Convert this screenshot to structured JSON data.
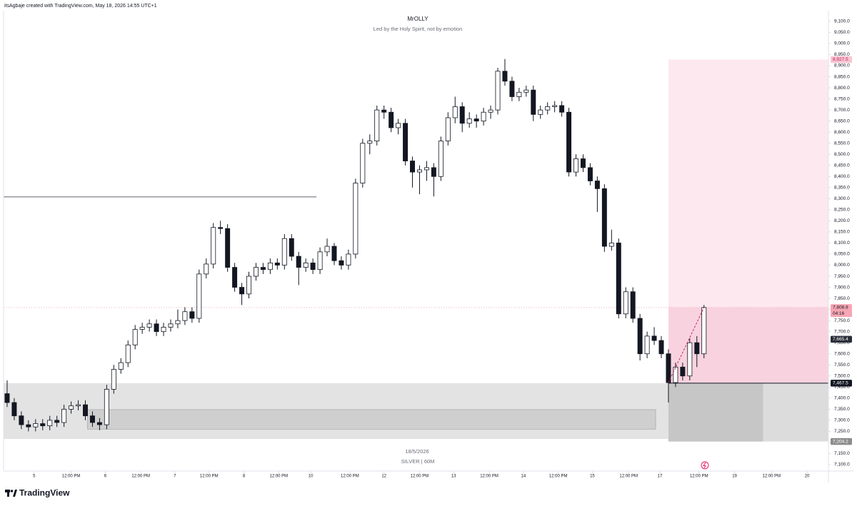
{
  "chart_data": {
    "type": "candlestick",
    "credit": "itsAgbaje created with TradingView.com, May 18, 2026 14:55 UTC+1",
    "title": "MrOLLY",
    "subtitle": "Led by the Holy Spirit, not by emotion",
    "date_label": "18/5/2026",
    "symbol": "SILVER | 60M",
    "brand": "TradingView",
    "countdown": "04:16",
    "up_color": "#ffffff",
    "down_color": "#131722",
    "xlim": [
      -0.5,
      115.5
    ],
    "ylim": [
      7071,
      9148
    ],
    "xticks": [
      {
        "value": 3.8,
        "label": "5"
      },
      {
        "value": 9.0,
        "label": "12:00 PM"
      },
      {
        "value": 13.8,
        "label": "6"
      },
      {
        "value": 18.8,
        "label": "12:00 PM"
      },
      {
        "value": 23.6,
        "label": "7"
      },
      {
        "value": 28.4,
        "label": "12:00 PM"
      },
      {
        "value": 33.3,
        "label": "8"
      },
      {
        "value": 38.2,
        "label": "12:00 PM"
      },
      {
        "value": 42.7,
        "label": "10"
      },
      {
        "value": 48.2,
        "label": "12:00 PM"
      },
      {
        "value": 53.0,
        "label": "12"
      },
      {
        "value": 58.0,
        "label": "12:00 PM"
      },
      {
        "value": 62.8,
        "label": "13"
      },
      {
        "value": 67.8,
        "label": "12:00 PM"
      },
      {
        "value": 72.6,
        "label": "14"
      },
      {
        "value": 77.5,
        "label": "12:00 PM"
      },
      {
        "value": 82.3,
        "label": "15"
      },
      {
        "value": 87.4,
        "label": "12:00 PM"
      },
      {
        "value": 91.8,
        "label": "17"
      },
      {
        "value": 97.3,
        "label": "12:00 PM"
      },
      {
        "value": 102.3,
        "label": "19"
      },
      {
        "value": 107.5,
        "label": "12:00 PM"
      },
      {
        "value": 112.5,
        "label": "20"
      }
    ],
    "yticks": [
      {
        "value": 7100,
        "label": "7,100.0"
      },
      {
        "value": 7150,
        "label": "7,150.0"
      },
      {
        "value": 7200,
        "label": "7,200.0"
      },
      {
        "value": 7250,
        "label": "7,250.0"
      },
      {
        "value": 7300,
        "label": "7,300.0"
      },
      {
        "value": 7350,
        "label": "7,350.0"
      },
      {
        "value": 7400,
        "label": "7,400.0"
      },
      {
        "value": 7450,
        "label": "7,450.0"
      },
      {
        "value": 7500,
        "label": "7,500.0"
      },
      {
        "value": 7550,
        "label": "7,550.0"
      },
      {
        "value": 7600,
        "label": "7,600.0"
      },
      {
        "value": 7650,
        "label": "7,650.0"
      },
      {
        "value": 7700,
        "label": "7,700.0"
      },
      {
        "value": 7750,
        "label": "7,750.0"
      },
      {
        "value": 7800,
        "label": "7,800.0"
      },
      {
        "value": 7850,
        "label": "7,850.0"
      },
      {
        "value": 7900,
        "label": "7,900.0"
      },
      {
        "value": 7950,
        "label": "7,950.0"
      },
      {
        "value": 8000,
        "label": "8,000.0"
      },
      {
        "value": 8050,
        "label": "8,050.0"
      },
      {
        "value": 8100,
        "label": "8,100.0"
      },
      {
        "value": 8150,
        "label": "8,150.0"
      },
      {
        "value": 8200,
        "label": "8,200.0"
      },
      {
        "value": 8250,
        "label": "8,250.0"
      },
      {
        "value": 8300,
        "label": "8,300.0"
      },
      {
        "value": 8350,
        "label": "8,350.0"
      },
      {
        "value": 8400,
        "label": "8,400.0"
      },
      {
        "value": 8450,
        "label": "8,450.0"
      },
      {
        "value": 8500,
        "label": "8,500.0"
      },
      {
        "value": 8550,
        "label": "8,550.0"
      },
      {
        "value": 8600,
        "label": "8,600.0"
      },
      {
        "value": 8650,
        "label": "8,650.0"
      },
      {
        "value": 8700,
        "label": "8,700.0"
      },
      {
        "value": 8750,
        "label": "8,750.0"
      },
      {
        "value": 8800,
        "label": "8,800.0"
      },
      {
        "value": 8850,
        "label": "8,850.0"
      },
      {
        "value": 8900,
        "label": "8,900.0"
      },
      {
        "value": 8950,
        "label": "8,950.0"
      },
      {
        "value": 9000,
        "label": "9,000.0"
      },
      {
        "value": 9050,
        "label": "9,050.0"
      },
      {
        "value": 9100,
        "label": "9,100.0"
      }
    ],
    "x": [
      0,
      1,
      2,
      3,
      4,
      5,
      6,
      7,
      8,
      9,
      10,
      11,
      12,
      13,
      14,
      15,
      16,
      17,
      18,
      19,
      20,
      21,
      22,
      23,
      24,
      25,
      26,
      27,
      28,
      29,
      30,
      31,
      32,
      33,
      34,
      35,
      36,
      37,
      38,
      39,
      40,
      41,
      42,
      43,
      44,
      45,
      46,
      47,
      48,
      49,
      50,
      51,
      52,
      53,
      54,
      55,
      56,
      57,
      58,
      59,
      60,
      61,
      62,
      63,
      64,
      65,
      66,
      67,
      68,
      69,
      70,
      71,
      72,
      73,
      74,
      75,
      76,
      77,
      78,
      79,
      80,
      81,
      82,
      83,
      84,
      85,
      86,
      87,
      88,
      89,
      90,
      91,
      92,
      93,
      94,
      95,
      96,
      97,
      98
    ],
    "ohlc": [
      [
        7420,
        7480,
        7360,
        7380
      ],
      [
        7380,
        7400,
        7300,
        7320
      ],
      [
        7320,
        7340,
        7260,
        7280
      ],
      [
        7280,
        7300,
        7250,
        7270
      ],
      [
        7270,
        7305,
        7250,
        7285
      ],
      [
        7285,
        7305,
        7255,
        7275
      ],
      [
        7275,
        7320,
        7255,
        7300
      ],
      [
        7300,
        7320,
        7270,
        7290
      ],
      [
        7290,
        7370,
        7270,
        7350
      ],
      [
        7350,
        7385,
        7330,
        7365
      ],
      [
        7365,
        7390,
        7345,
        7370
      ],
      [
        7370,
        7390,
        7300,
        7320
      ],
      [
        7320,
        7340,
        7270,
        7290
      ],
      [
        7290,
        7310,
        7255,
        7280
      ],
      [
        7280,
        7460,
        7260,
        7440
      ],
      [
        7440,
        7550,
        7420,
        7530
      ],
      [
        7530,
        7580,
        7510,
        7560
      ],
      [
        7560,
        7660,
        7540,
        7640
      ],
      [
        7640,
        7730,
        7620,
        7710
      ],
      [
        7710,
        7740,
        7690,
        7720
      ],
      [
        7720,
        7755,
        7700,
        7735
      ],
      [
        7735,
        7755,
        7680,
        7700
      ],
      [
        7700,
        7740,
        7680,
        7720
      ],
      [
        7720,
        7755,
        7700,
        7735
      ],
      [
        7735,
        7800,
        7715,
        7750
      ],
      [
        7750,
        7810,
        7730,
        7790
      ],
      [
        7790,
        7810,
        7740,
        7760
      ],
      [
        7760,
        7980,
        7740,
        7960
      ],
      [
        7960,
        8030,
        7940,
        8005
      ],
      [
        8005,
        8190,
        7985,
        8170
      ],
      [
        8170,
        8200,
        8140,
        8165
      ],
      [
        8165,
        8185,
        7970,
        7990
      ],
      [
        7990,
        8010,
        7880,
        7900
      ],
      [
        7900,
        7920,
        7820,
        7870
      ],
      [
        7870,
        7970,
        7850,
        7950
      ],
      [
        7950,
        8010,
        7930,
        7990
      ],
      [
        7990,
        8010,
        7960,
        7980
      ],
      [
        7980,
        8030,
        7960,
        8010
      ],
      [
        8010,
        8030,
        7980,
        8000
      ],
      [
        8000,
        8140,
        7980,
        8120
      ],
      [
        8120,
        8140,
        8020,
        8040
      ],
      [
        8040,
        8060,
        7910,
        7990
      ],
      [
        7990,
        8030,
        7970,
        8010
      ],
      [
        8010,
        8030,
        7960,
        7980
      ],
      [
        7980,
        8080,
        7960,
        8060
      ],
      [
        8060,
        8120,
        8040,
        8085
      ],
      [
        8085,
        8100,
        8000,
        8020
      ],
      [
        8020,
        8040,
        7980,
        8000
      ],
      [
        8000,
        8070,
        7980,
        8050
      ],
      [
        8050,
        8390,
        8030,
        8370
      ],
      [
        8370,
        8570,
        8350,
        8550
      ],
      [
        8550,
        8590,
        8500,
        8560
      ],
      [
        8560,
        8720,
        8540,
        8700
      ],
      [
        8700,
        8720,
        8660,
        8690
      ],
      [
        8690,
        8710,
        8600,
        8620
      ],
      [
        8620,
        8660,
        8590,
        8640
      ],
      [
        8640,
        8660,
        8450,
        8470
      ],
      [
        8470,
        8490,
        8350,
        8420
      ],
      [
        8420,
        8450,
        8320,
        8430
      ],
      [
        8430,
        8470,
        8380,
        8440
      ],
      [
        8440,
        8460,
        8310,
        8400
      ],
      [
        8400,
        8580,
        8380,
        8560
      ],
      [
        8560,
        8690,
        8540,
        8665
      ],
      [
        8665,
        8760,
        8640,
        8715
      ],
      [
        8715,
        8735,
        8600,
        8640
      ],
      [
        8640,
        8690,
        8620,
        8660
      ],
      [
        8660,
        8680,
        8620,
        8650
      ],
      [
        8650,
        8710,
        8630,
        8690
      ],
      [
        8690,
        8720,
        8660,
        8700
      ],
      [
        8700,
        8890,
        8680,
        8875
      ],
      [
        8875,
        8930,
        8810,
        8830
      ],
      [
        8830,
        8850,
        8740,
        8760
      ],
      [
        8760,
        8800,
        8740,
        8780
      ],
      [
        8780,
        8810,
        8760,
        8790
      ],
      [
        8790,
        8810,
        8650,
        8680
      ],
      [
        8680,
        8720,
        8660,
        8700
      ],
      [
        8700,
        8735,
        8680,
        8715
      ],
      [
        8715,
        8740,
        8690,
        8720
      ],
      [
        8720,
        8740,
        8670,
        8690
      ],
      [
        8690,
        8710,
        8400,
        8420
      ],
      [
        8420,
        8500,
        8400,
        8480
      ],
      [
        8480,
        8500,
        8420,
        8440
      ],
      [
        8440,
        8460,
        8360,
        8380
      ],
      [
        8380,
        8400,
        8240,
        8345
      ],
      [
        8345,
        8365,
        8060,
        8085
      ],
      [
        8085,
        8160,
        8065,
        8100
      ],
      [
        8100,
        8120,
        7760,
        7780
      ],
      [
        7780,
        7900,
        7760,
        7880
      ],
      [
        7880,
        7900,
        7740,
        7760
      ],
      [
        7760,
        7780,
        7570,
        7600
      ],
      [
        7600,
        7700,
        7580,
        7680
      ],
      [
        7680,
        7720,
        7640,
        7660
      ],
      [
        7660,
        7680,
        7580,
        7600
      ],
      [
        7600,
        7620,
        7380,
        7470
      ],
      [
        7470,
        7560,
        7450,
        7540
      ],
      [
        7540,
        7560,
        7480,
        7500
      ],
      [
        7500,
        7670,
        7480,
        7650
      ],
      [
        7650,
        7680,
        7540,
        7600
      ],
      [
        7600,
        7820,
        7580,
        7808.8
      ]
    ],
    "zones": [
      {
        "x": [
          -0.5,
          93
        ],
        "y": [
          7216,
          7467.5
        ],
        "color": "#e3e3e3"
      },
      {
        "x": [
          11.3,
          91.2
        ],
        "y": [
          7260,
          7348
        ],
        "color": "#cfcfcf"
      },
      {
        "x": [
          93,
          115.5
        ],
        "y": [
          7204.2,
          7467.5
        ],
        "color": "#dcdcdc"
      },
      {
        "x": [
          93,
          106.3
        ],
        "y": [
          7204.2,
          7467.5
        ],
        "color": "#c6c6c6"
      },
      {
        "x": [
          93,
          115.5
        ],
        "y": [
          7467.5,
          8927.5
        ],
        "color": "#fce8ee"
      },
      {
        "x": [
          93,
          115.5
        ],
        "y": [
          7467.5,
          7808.8
        ],
        "color": "#f8d3df"
      }
    ],
    "levels": [
      {
        "x": [
          -0.5,
          43.5
        ],
        "y": 8308,
        "color": "#5d606b",
        "dash": false
      },
      {
        "x": [
          93,
          115.5
        ],
        "y": 7467.5,
        "color": "#131722",
        "dash": false
      },
      {
        "x": [
          -0.5,
          115.5
        ],
        "y": 7808.8,
        "color": "#f7a6b4",
        "dash": true
      }
    ],
    "trend_line": {
      "x": [
        93,
        98
      ],
      "y": [
        7470,
        7808.8
      ],
      "color": "#c2185b"
    },
    "price_tags": [
      {
        "value": 8927.5,
        "label": "8,927.5",
        "color": "#f7c6d2",
        "text_color": "#c2185b"
      },
      {
        "value": 7808.8,
        "label": "7,808.8",
        "color": "#f7a6b4",
        "text_color": "#131722"
      },
      {
        "value": 7665.4,
        "label": "7,665.4",
        "color": "#2a2e39",
        "text_color": "#ffffff"
      },
      {
        "value": 7467.5,
        "label": "7,467.5",
        "color": "#131722",
        "text_color": "#ffffff"
      },
      {
        "value": 7204.2,
        "label": "7,204.2",
        "color": "#8d8d8d",
        "text_color": "#ffffff"
      }
    ]
  }
}
